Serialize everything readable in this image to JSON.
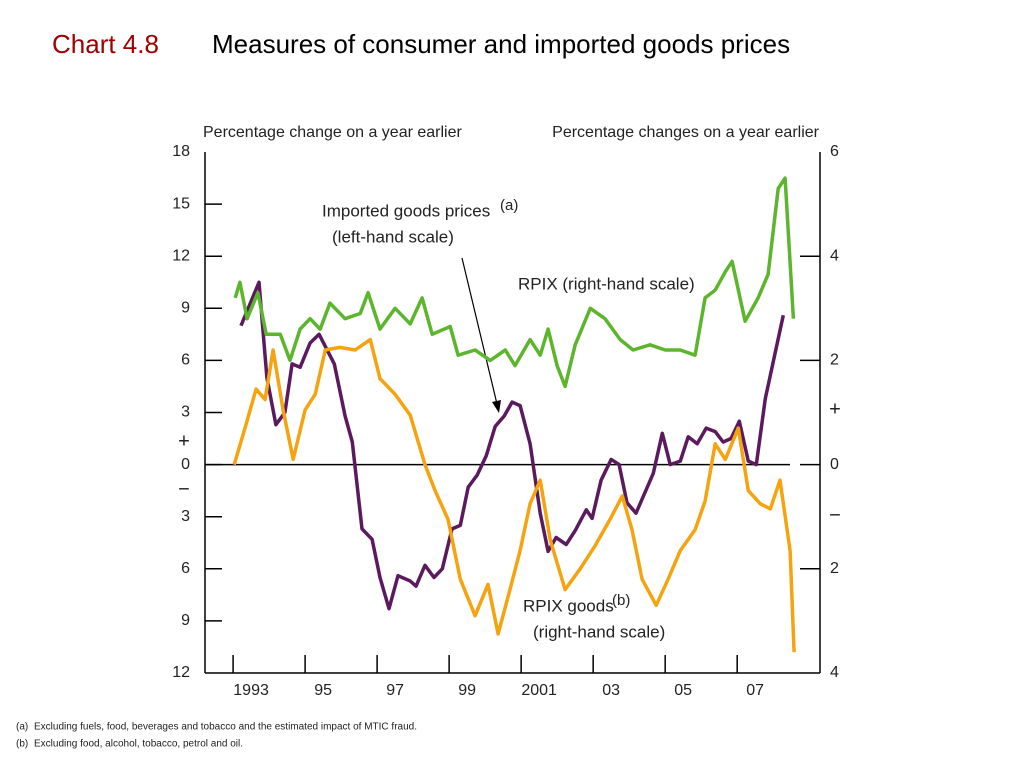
{
  "chart_data": {
    "type": "line",
    "title_prefix": "Chart 4.8",
    "title": "Measures of consumer and imported goods prices",
    "y_axis_label": "Percentage change on a year earlier",
    "y2_axis_label": "Percentage changes on a year earlier",
    "axis_signs": [
      "+",
      "−"
    ],
    "annotations": [
      {
        "text": "Imported goods prices",
        "note": "(a)",
        "text2": "(left-hand scale)"
      },
      {
        "text": "RPIX (right-hand scale)"
      },
      {
        "text": "RPIX goods",
        "note": "(b)",
        "text2": "(right-hand scale)"
      }
    ],
    "footnotes": [
      {
        "mark": "(a)",
        "text": "Excluding fuels, food, beverages and tobacco and the estimated impact of MTIC fraud."
      },
      {
        "mark": "(b)",
        "text": "Excluding food, alcohol, tobacco, petrol and oil."
      }
    ],
    "xlim": [
      1992.22,
      2009.3
    ],
    "xticks": [
      {
        "value": 1993,
        "label": "1993"
      },
      {
        "value": 1995,
        "label": "95"
      },
      {
        "value": 1997,
        "label": "97"
      },
      {
        "value": 1999,
        "label": "99"
      },
      {
        "value": 2001,
        "label": "2001"
      },
      {
        "value": 2003,
        "label": "03"
      },
      {
        "value": 2005,
        "label": "05"
      },
      {
        "value": 2007,
        "label": "07"
      }
    ],
    "ylim": [
      -12,
      18
    ],
    "yticks": [
      18,
      15,
      12,
      9,
      6,
      3,
      0,
      {
        "value": -3,
        "label": "3"
      },
      {
        "value": -6,
        "label": "6"
      },
      {
        "value": -9,
        "label": "9"
      },
      {
        "value": -12,
        "label": "12"
      }
    ],
    "y2lim": [
      -4,
      6
    ],
    "y2ticks": [
      6,
      4,
      2,
      0,
      {
        "value": -2,
        "label": "2"
      },
      {
        "value": -4,
        "label": "4"
      }
    ],
    "series": [
      {
        "name": "Imported goods prices",
        "color": "#5b1a5e",
        "axis": "y",
        "x": [
          1993.22,
          1993.72,
          1993.94,
          1994.19,
          1994.44,
          1994.64,
          1994.86,
          1995.14,
          1995.39,
          1995.81,
          1996.11,
          1996.31,
          1996.58,
          1996.86,
          1997.08,
          1997.33,
          1997.58,
          1997.92,
          1998.08,
          1998.33,
          1998.58,
          1998.81,
          1999.08,
          1999.31,
          1999.53,
          1999.78,
          2000.03,
          2000.28,
          2000.53,
          2000.75,
          2000.97,
          2001.25,
          2001.53,
          2001.75,
          2001.97,
          2002.25,
          2002.5,
          2002.81,
          2002.97,
          2003.22,
          2003.5,
          2003.72,
          2003.94,
          2004.19,
          2004.44,
          2004.67,
          2004.92,
          2005.14,
          2005.42,
          2005.64,
          2005.89,
          2006.14,
          2006.39,
          2006.61,
          2006.83,
          2007.06,
          2007.31,
          2007.53,
          2007.78,
          2008.03,
          2008.28
        ],
        "values": [
          8,
          10.5,
          5,
          2.3,
          3,
          5.8,
          5.6,
          7,
          7.5,
          5.8,
          2.8,
          1.3,
          -3.7,
          -4.3,
          -6.5,
          -8.3,
          -6.4,
          -6.7,
          -7,
          -5.8,
          -6.5,
          -6,
          -3.7,
          -3.5,
          -1.3,
          -0.6,
          0.5,
          2.2,
          2.8,
          3.6,
          3.4,
          1.2,
          -2.8,
          -5,
          -4.2,
          -4.6,
          -3.8,
          -2.6,
          -3.1,
          -0.9,
          0.3,
          0,
          -2.2,
          -2.8,
          -1.6,
          -0.5,
          1.8,
          0,
          0.2,
          1.6,
          1.2,
          2.1,
          1.9,
          1.3,
          1.5,
          2.5,
          0.2,
          0,
          3.8,
          6.2,
          8.6
        ]
      },
      {
        "name": "RPIX",
        "color": "#5db52e",
        "axis": "y2",
        "x": [
          1993.06,
          1993.19,
          1993.39,
          1993.69,
          1993.92,
          1994.31,
          1994.58,
          1994.86,
          1995.14,
          1995.42,
          1995.69,
          1996.11,
          1996.53,
          1996.75,
          1997.08,
          1997.5,
          1997.92,
          1998.25,
          1998.53,
          1999.03,
          1999.25,
          1999.72,
          2000.14,
          2000.56,
          2000.83,
          2001.25,
          2001.53,
          2001.75,
          2002,
          2002.22,
          2002.5,
          2002.92,
          2003.33,
          2003.75,
          2004.11,
          2004.58,
          2005,
          2005.42,
          2005.83,
          2006.11,
          2006.39,
          2006.67,
          2006.86,
          2007.22,
          2007.58,
          2007.86,
          2008.14,
          2008.33,
          2008.56
        ],
        "values": [
          3.2,
          3.5,
          2.8,
          3.3,
          2.5,
          2.5,
          2,
          2.6,
          2.8,
          2.6,
          3.1,
          2.8,
          2.9,
          3.3,
          2.6,
          3,
          2.7,
          3.2,
          2.5,
          2.65,
          2.1,
          2.2,
          2,
          2.2,
          1.9,
          2.4,
          2.1,
          2.6,
          1.9,
          1.5,
          2.3,
          3,
          2.8,
          2.4,
          2.2,
          2.3,
          2.2,
          2.2,
          2.1,
          3.2,
          3.35,
          3.7,
          3.9,
          2.75,
          3.2,
          3.65,
          5.3,
          5.5,
          2.8
        ]
      },
      {
        "name": "RPIX goods",
        "color": "#f5a30f",
        "axis": "y2",
        "x": [
          1993.03,
          1993.33,
          1993.64,
          1993.89,
          1994.11,
          1994.39,
          1994.67,
          1995,
          1995.28,
          1995.56,
          1995.97,
          1996.39,
          1996.81,
          1997.08,
          1997.5,
          1997.92,
          1998.33,
          1998.61,
          1998.97,
          1999.31,
          1999.72,
          2000.08,
          2000.36,
          2000.69,
          2000.97,
          2001.25,
          2001.53,
          2001.81,
          2002.22,
          2002.64,
          2003.06,
          2003.47,
          2003.81,
          2004.08,
          2004.36,
          2004.75,
          2005.08,
          2005.42,
          2005.83,
          2006.11,
          2006.39,
          2006.67,
          2007.03,
          2007.31,
          2007.64,
          2007.92,
          2008.19,
          2008.47,
          2008.58
        ],
        "values": [
          0,
          0.7,
          1.45,
          1.25,
          2.2,
          1.05,
          0.1,
          1.05,
          1.35,
          2.2,
          2.25,
          2.2,
          2.4,
          1.65,
          1.35,
          0.95,
          0,
          -0.5,
          -1.05,
          -2.2,
          -2.9,
          -2.3,
          -3.25,
          -2.4,
          -1.65,
          -0.75,
          -0.3,
          -1.45,
          -2.4,
          -2,
          -1.55,
          -1.05,
          -0.6,
          -1.25,
          -2.2,
          -2.7,
          -2.2,
          -1.65,
          -1.25,
          -0.7,
          0.4,
          0.1,
          0.7,
          -0.5,
          -0.75,
          -0.85,
          -0.3,
          -1.65,
          -3.6
        ]
      }
    ]
  }
}
